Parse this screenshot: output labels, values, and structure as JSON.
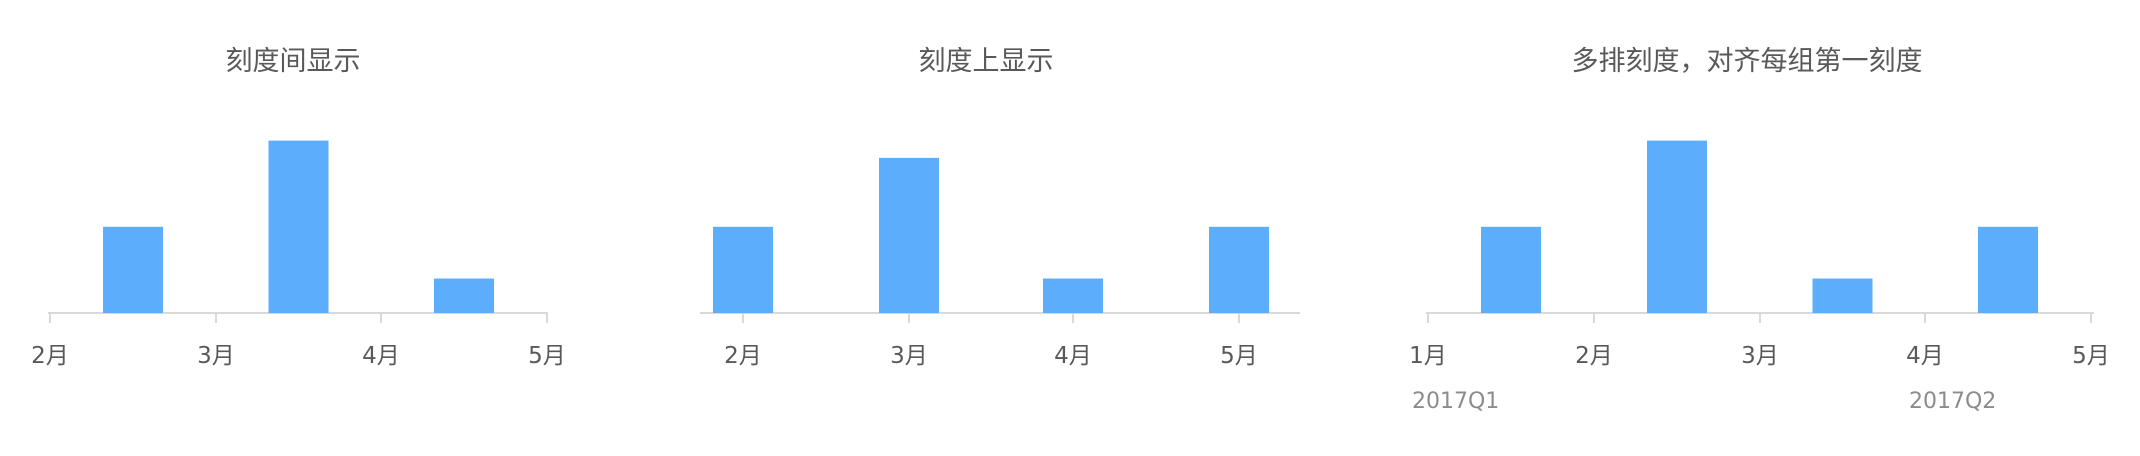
{
  "chart_data": [
    {
      "type": "bar",
      "title": "刻度间显示",
      "tick_labels": [
        "2月",
        "3月",
        "4月",
        "5月"
      ],
      "tick_alignment": "between",
      "values": [
        2,
        4,
        0.8
      ],
      "ylim": [
        0,
        4.2
      ],
      "grid": false,
      "color": "#5DADFD",
      "axis_color": "#D9D9D9"
    },
    {
      "type": "bar",
      "title": "刻度上显示",
      "tick_labels": [
        "2月",
        "3月",
        "4月",
        "5月"
      ],
      "tick_alignment": "center",
      "values": [
        2,
        3.6,
        0.8,
        2
      ],
      "ylim": [
        0,
        4.2
      ],
      "grid": false,
      "color": "#5DADFD",
      "axis_color": "#D9D9D9"
    },
    {
      "type": "bar",
      "title": "多排刻度，对齐每组第一刻度",
      "tick_labels": [
        "1月",
        "2月",
        "3月",
        "4月",
        "5月"
      ],
      "tick_alignment": "between",
      "values": [
        2,
        4,
        0.8,
        2
      ],
      "group_labels": [
        "2017Q1",
        "2017Q2"
      ],
      "group_label_anchors": [
        0,
        3
      ],
      "ylim": [
        0,
        4.2
      ],
      "grid": false,
      "color": "#5DADFD",
      "axis_color": "#D9D9D9"
    }
  ]
}
